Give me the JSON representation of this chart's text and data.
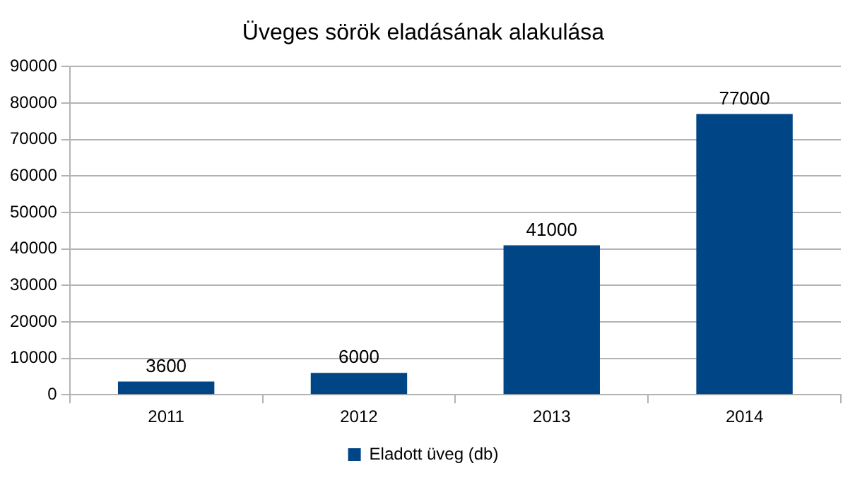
{
  "chart_data": {
    "type": "bar",
    "title": "Üveges sörök eladásának alakulása",
    "categories": [
      "2011",
      "2012",
      "2013",
      "2014"
    ],
    "series": [
      {
        "name": "Eladott üveg (db)",
        "color": "#004586",
        "values": [
          3600,
          6000,
          41000,
          77000
        ]
      }
    ],
    "ylim": [
      0,
      90000
    ],
    "yticks": [
      0,
      10000,
      20000,
      30000,
      40000,
      50000,
      60000,
      70000,
      80000,
      90000
    ],
    "grid": "y",
    "legend": "bottom",
    "data_labels": true
  }
}
